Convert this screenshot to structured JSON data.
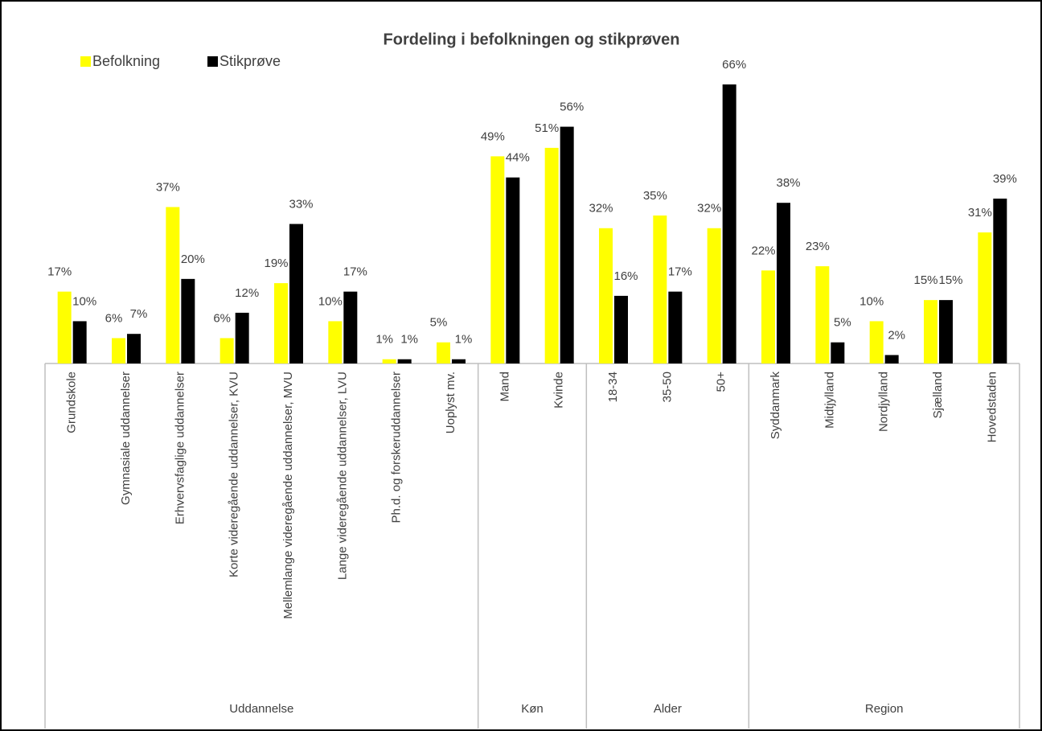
{
  "chart_data": {
    "type": "bar",
    "title": "Fordeling i befolkningen og stikprøven",
    "groups": [
      {
        "label": "Uddannelse",
        "categories": [
          "Grundskole",
          "Gymnasiale uddannelser",
          "Erhvervsfaglige uddannelser",
          "Korte videregående uddannelser, KVU",
          "Mellemlange videregående uddannelser, MVU",
          "Lange videregående uddannelser, LVU",
          "Ph.d. og forskeruddannelser",
          "Uoplyst mv."
        ]
      },
      {
        "label": "Køn",
        "categories": [
          "Mand",
          "Kvinde"
        ]
      },
      {
        "label": "Alder",
        "categories": [
          "18-34",
          "35-50",
          "50+"
        ]
      },
      {
        "label": "Region",
        "categories": [
          "Syddanmark",
          "Midtjylland",
          "Nordjylland",
          "Sjælland",
          "Hovedstaden"
        ]
      }
    ],
    "series": [
      {
        "name": "Befolkning",
        "color": "#ffff00",
        "values": [
          17,
          6,
          37,
          6,
          19,
          10,
          1,
          5,
          49,
          51,
          32,
          35,
          32,
          22,
          23,
          10,
          15,
          31
        ],
        "value_labels": [
          "17%",
          "6%",
          "37%",
          "6%",
          "19%",
          "10%",
          "1%",
          "5%",
          "49%",
          "51%",
          "32%",
          "35%",
          "32%",
          "22%",
          "23%",
          "10%",
          "15%",
          "31%"
        ]
      },
      {
        "name": "Stikprøve",
        "color": "#000000",
        "values": [
          10,
          7,
          20,
          12,
          33,
          17,
          1,
          1,
          44,
          56,
          16,
          17,
          66,
          38,
          5,
          2,
          15,
          39
        ],
        "value_labels": [
          "10%",
          "7%",
          "20%",
          "12%",
          "33%",
          "17%",
          "1%",
          "1%",
          "44%",
          "56%",
          "16%",
          "17%",
          "66%",
          "38%",
          "5%",
          "2%",
          "15%",
          "39%"
        ]
      }
    ],
    "legend": "top-left"
  }
}
